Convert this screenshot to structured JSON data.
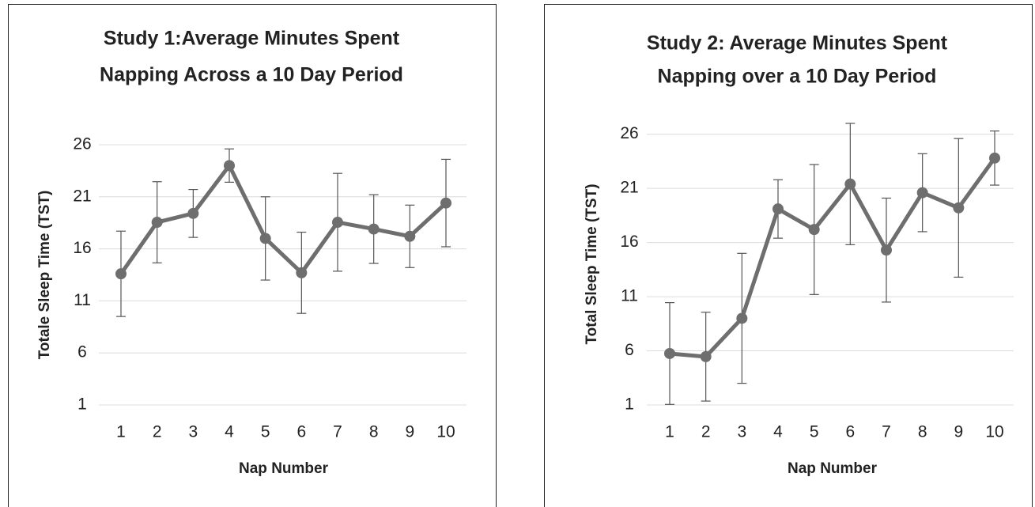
{
  "chart_data": [
    {
      "type": "line",
      "title": [
        "Study 1:Average Minutes Spent",
        "Napping Across a 10 Day Period"
      ],
      "x_label": "Nap Number",
      "y_label": "Totale Sleep Time (TST)",
      "categories": [
        "1",
        "2",
        "3",
        "4",
        "5",
        "6",
        "7",
        "8",
        "9",
        "10"
      ],
      "values": [
        13.6,
        18.55,
        19.4,
        24.0,
        17.0,
        13.7,
        18.55,
        17.9,
        17.2,
        20.4
      ],
      "errors": [
        4.1,
        3.9,
        2.3,
        1.6,
        4.0,
        3.9,
        4.7,
        3.3,
        3.0,
        4.2
      ],
      "color": "#6e6e6e",
      "error_color": "#555555",
      "ylim": [
        1,
        26
      ],
      "yticks": [
        1,
        6,
        11,
        16,
        21,
        26
      ],
      "grid": true
    },
    {
      "type": "line",
      "title": [
        "Study 2: Average Minutes Spent",
        "Napping over a 10 Day Period"
      ],
      "x_label": "Nap Number",
      "y_label": "Total Sleep Time (TST)",
      "categories": [
        "1",
        "2",
        "3",
        "4",
        "5",
        "6",
        "7",
        "8",
        "9",
        "10"
      ],
      "values": [
        5.75,
        5.46,
        9.0,
        19.1,
        17.2,
        21.4,
        15.3,
        20.6,
        19.2,
        23.8
      ],
      "errors": [
        4.7,
        4.1,
        6.0,
        2.7,
        6.0,
        5.6,
        4.8,
        3.6,
        6.4,
        2.5
      ],
      "color": "#6e6e6e",
      "error_color": "#555555",
      "ylim": [
        1,
        27
      ],
      "yticks": [
        1,
        6,
        11,
        16,
        21,
        26
      ],
      "grid": true
    }
  ]
}
